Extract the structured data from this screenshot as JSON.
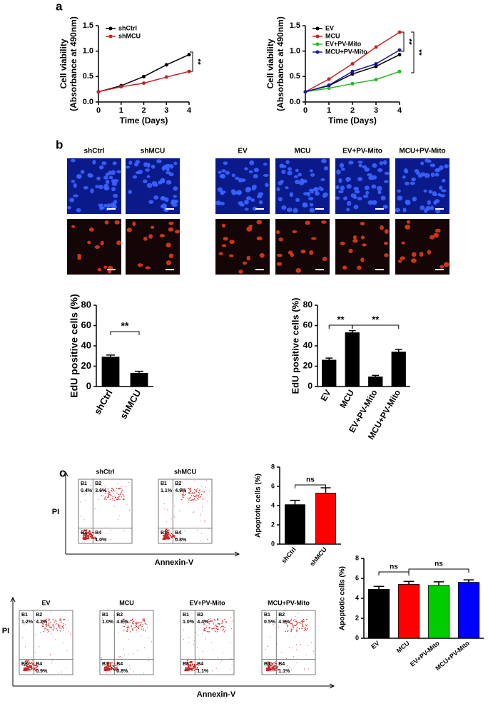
{
  "panel_labels": [
    "a",
    "b",
    "c"
  ],
  "chart_data": [
    {
      "type": "line",
      "x": [
        0,
        1,
        2,
        3,
        4
      ],
      "xlim": [
        0,
        4
      ],
      "xticks": [
        0,
        1,
        2,
        3,
        4
      ],
      "ylim": [
        0,
        1.5
      ],
      "yticks": [
        {
          "value": 0,
          "label": "0.0"
        },
        0.5,
        {
          "value": 1,
          "label": "1.0"
        },
        1.5
      ],
      "xlabel": "Time (Days)",
      "ylabel": [
        "Cell viability",
        "(Absorbance at 490nm)"
      ],
      "legend": "upper left",
      "series": [
        {
          "name": "shCtrl",
          "color": "#000000",
          "values": [
            0.2,
            0.32,
            0.5,
            0.73,
            0.93
          ]
        },
        {
          "name": "shMCU",
          "color": "#cc2222",
          "values": [
            0.2,
            0.3,
            0.37,
            0.49,
            0.6
          ]
        }
      ],
      "annotations": [
        "**"
      ]
    },
    {
      "type": "line",
      "x": [
        0,
        1,
        2,
        3,
        4
      ],
      "xlim": [
        0,
        4
      ],
      "xticks": [
        0,
        1,
        2,
        3,
        4
      ],
      "ylim": [
        0,
        1.5
      ],
      "yticks": [
        {
          "value": 0,
          "label": "0.0"
        },
        0.5,
        {
          "value": 1,
          "label": "1.0"
        },
        1.5
      ],
      "xlabel": "Time (Days)",
      "ylabel": [
        "Cell viability",
        "(Absorbance at 490nm)"
      ],
      "legend": "upper left",
      "series": [
        {
          "name": "EV",
          "color": "#000000",
          "values": [
            0.2,
            0.32,
            0.55,
            0.7,
            0.93
          ]
        },
        {
          "name": "MCU",
          "color": "#cc2222",
          "values": [
            0.2,
            0.45,
            0.75,
            1.08,
            1.37
          ]
        },
        {
          "name": "EV+PV-Mito",
          "color": "#22bb22",
          "values": [
            0.2,
            0.27,
            0.36,
            0.44,
            0.6
          ]
        },
        {
          "name": "MCU+PV-Mito",
          "color": "#1a1a99",
          "values": [
            0.2,
            0.33,
            0.6,
            0.75,
            1.02
          ]
        }
      ],
      "annotations": [
        "**",
        "**"
      ]
    },
    {
      "type": "bar",
      "categories": [
        "shCtrl",
        "shMCU"
      ],
      "values": [
        29,
        13
      ],
      "errors": [
        2,
        2
      ],
      "color": "#000000",
      "ylim": [
        0,
        80
      ],
      "yticks": [
        0,
        20,
        40,
        60,
        80
      ],
      "ylabel": "EdU positive cells (%)",
      "annotations": [
        "**"
      ]
    },
    {
      "type": "bar",
      "categories": [
        "EV",
        "MCU",
        "EV+PV-Mito",
        "MCU+PV-Mito"
      ],
      "values": [
        26,
        53,
        9.5,
        34
      ],
      "errors": [
        2,
        2,
        1.5,
        2.5
      ],
      "color": "#000000",
      "ylim": [
        0,
        80
      ],
      "yticks": [
        0,
        20,
        40,
        60,
        80
      ],
      "ylabel": "EdU positive cells (%)",
      "annotations": [
        "**",
        "**"
      ]
    },
    {
      "type": "bar",
      "categories": [
        "shCtrl",
        "shMCU"
      ],
      "values": [
        4.1,
        5.3
      ],
      "errors": [
        0.45,
        0.55
      ],
      "colors": [
        "#000000",
        "#ff0000"
      ],
      "ylim": [
        0,
        8
      ],
      "yticks": [
        0,
        2,
        4,
        6,
        8
      ],
      "ylabel": "Apoptotic cells (%)",
      "annotations": [
        "ns"
      ]
    },
    {
      "type": "bar",
      "categories": [
        "EV",
        "MCU",
        "EV+PV-Mito",
        "MCU+PV-Mito"
      ],
      "values": [
        4.9,
        5.4,
        5.3,
        5.6
      ],
      "errors": [
        0.3,
        0.3,
        0.35,
        0.25
      ],
      "colors": [
        "#000000",
        "#ff0000",
        "#00cc00",
        "#0000ff"
      ],
      "ylim": [
        0,
        8
      ],
      "yticks": [
        0,
        2,
        4,
        6,
        8
      ],
      "ylabel": "Apoptotic cells (%)",
      "annotations": [
        "ns",
        "ns"
      ]
    }
  ],
  "images": {
    "left": [
      "shCtrl",
      "shMCU"
    ],
    "right": [
      "EV",
      "MCU",
      "EV+PV-Mito",
      "MCU+PV-Mito"
    ]
  },
  "flow": {
    "x_label": "Annexin-V",
    "y_label": "PI",
    "quadrants": [
      "B1",
      "B2",
      "B3",
      "B4"
    ],
    "top": [
      {
        "title": "shCtrl",
        "B1": "0.4%",
        "B2": "3.6%",
        "B4": "1.0%"
      },
      {
        "title": "shMCU",
        "B1": "1.1%",
        "B2": "4.9%",
        "B4": "0.8%"
      }
    ],
    "bottom": [
      {
        "title": "EV",
        "B1": "1.2%",
        "B2": "4.2%",
        "B4": "0.9%"
      },
      {
        "title": "MCU",
        "B1": "1.0%",
        "B2": "4.6%",
        "B4": "0.8%"
      },
      {
        "title": "EV+PV-Mito",
        "B1": "1.0%",
        "B2": "4.4%",
        "B4": "1.1%"
      },
      {
        "title": "MCU+PV-Mito",
        "B1": "0.5%",
        "B2": "4.9%",
        "B4": "1.1%"
      }
    ]
  }
}
